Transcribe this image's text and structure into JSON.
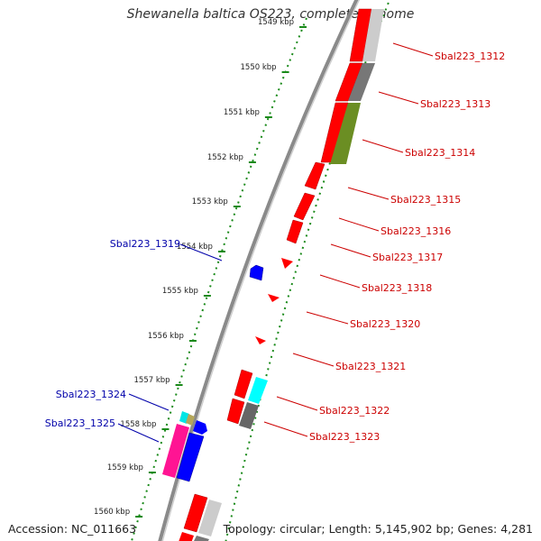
{
  "title": "Shewanella baltica OS223, complete genome",
  "footer": {
    "accession": "Accession: NC_011663",
    "topology": "Topology: circular; Length: 5,145,902 bp; Genes: 4,281"
  },
  "ruler_ticks": [
    "1549 kbp",
    "1550 kbp",
    "1551 kbp",
    "1552 kbp",
    "1553 kbp",
    "1554 kbp",
    "1555 kbp",
    "1556 kbp",
    "1557 kbp",
    "1558 kbp",
    "1559 kbp",
    "1560 kbp"
  ],
  "colors": {
    "forward_gene": "#ff0000",
    "reverse_gene": "#0000ff",
    "backbone": "#888888",
    "ruler": "#1a8a1a",
    "label_forward": "#cc0000",
    "label_reverse": "#0000aa"
  },
  "labels_right": [
    "Sbal223_1312",
    "Sbal223_1313",
    "Sbal223_1314",
    "Sbal223_1315",
    "Sbal223_1316",
    "Sbal223_1317",
    "Sbal223_1318",
    "Sbal223_1320",
    "Sbal223_1321",
    "Sbal223_1322",
    "Sbal223_1323"
  ],
  "labels_left": [
    "Sbal223_1319",
    "Sbal223_1324",
    "Sbal223_1325"
  ]
}
